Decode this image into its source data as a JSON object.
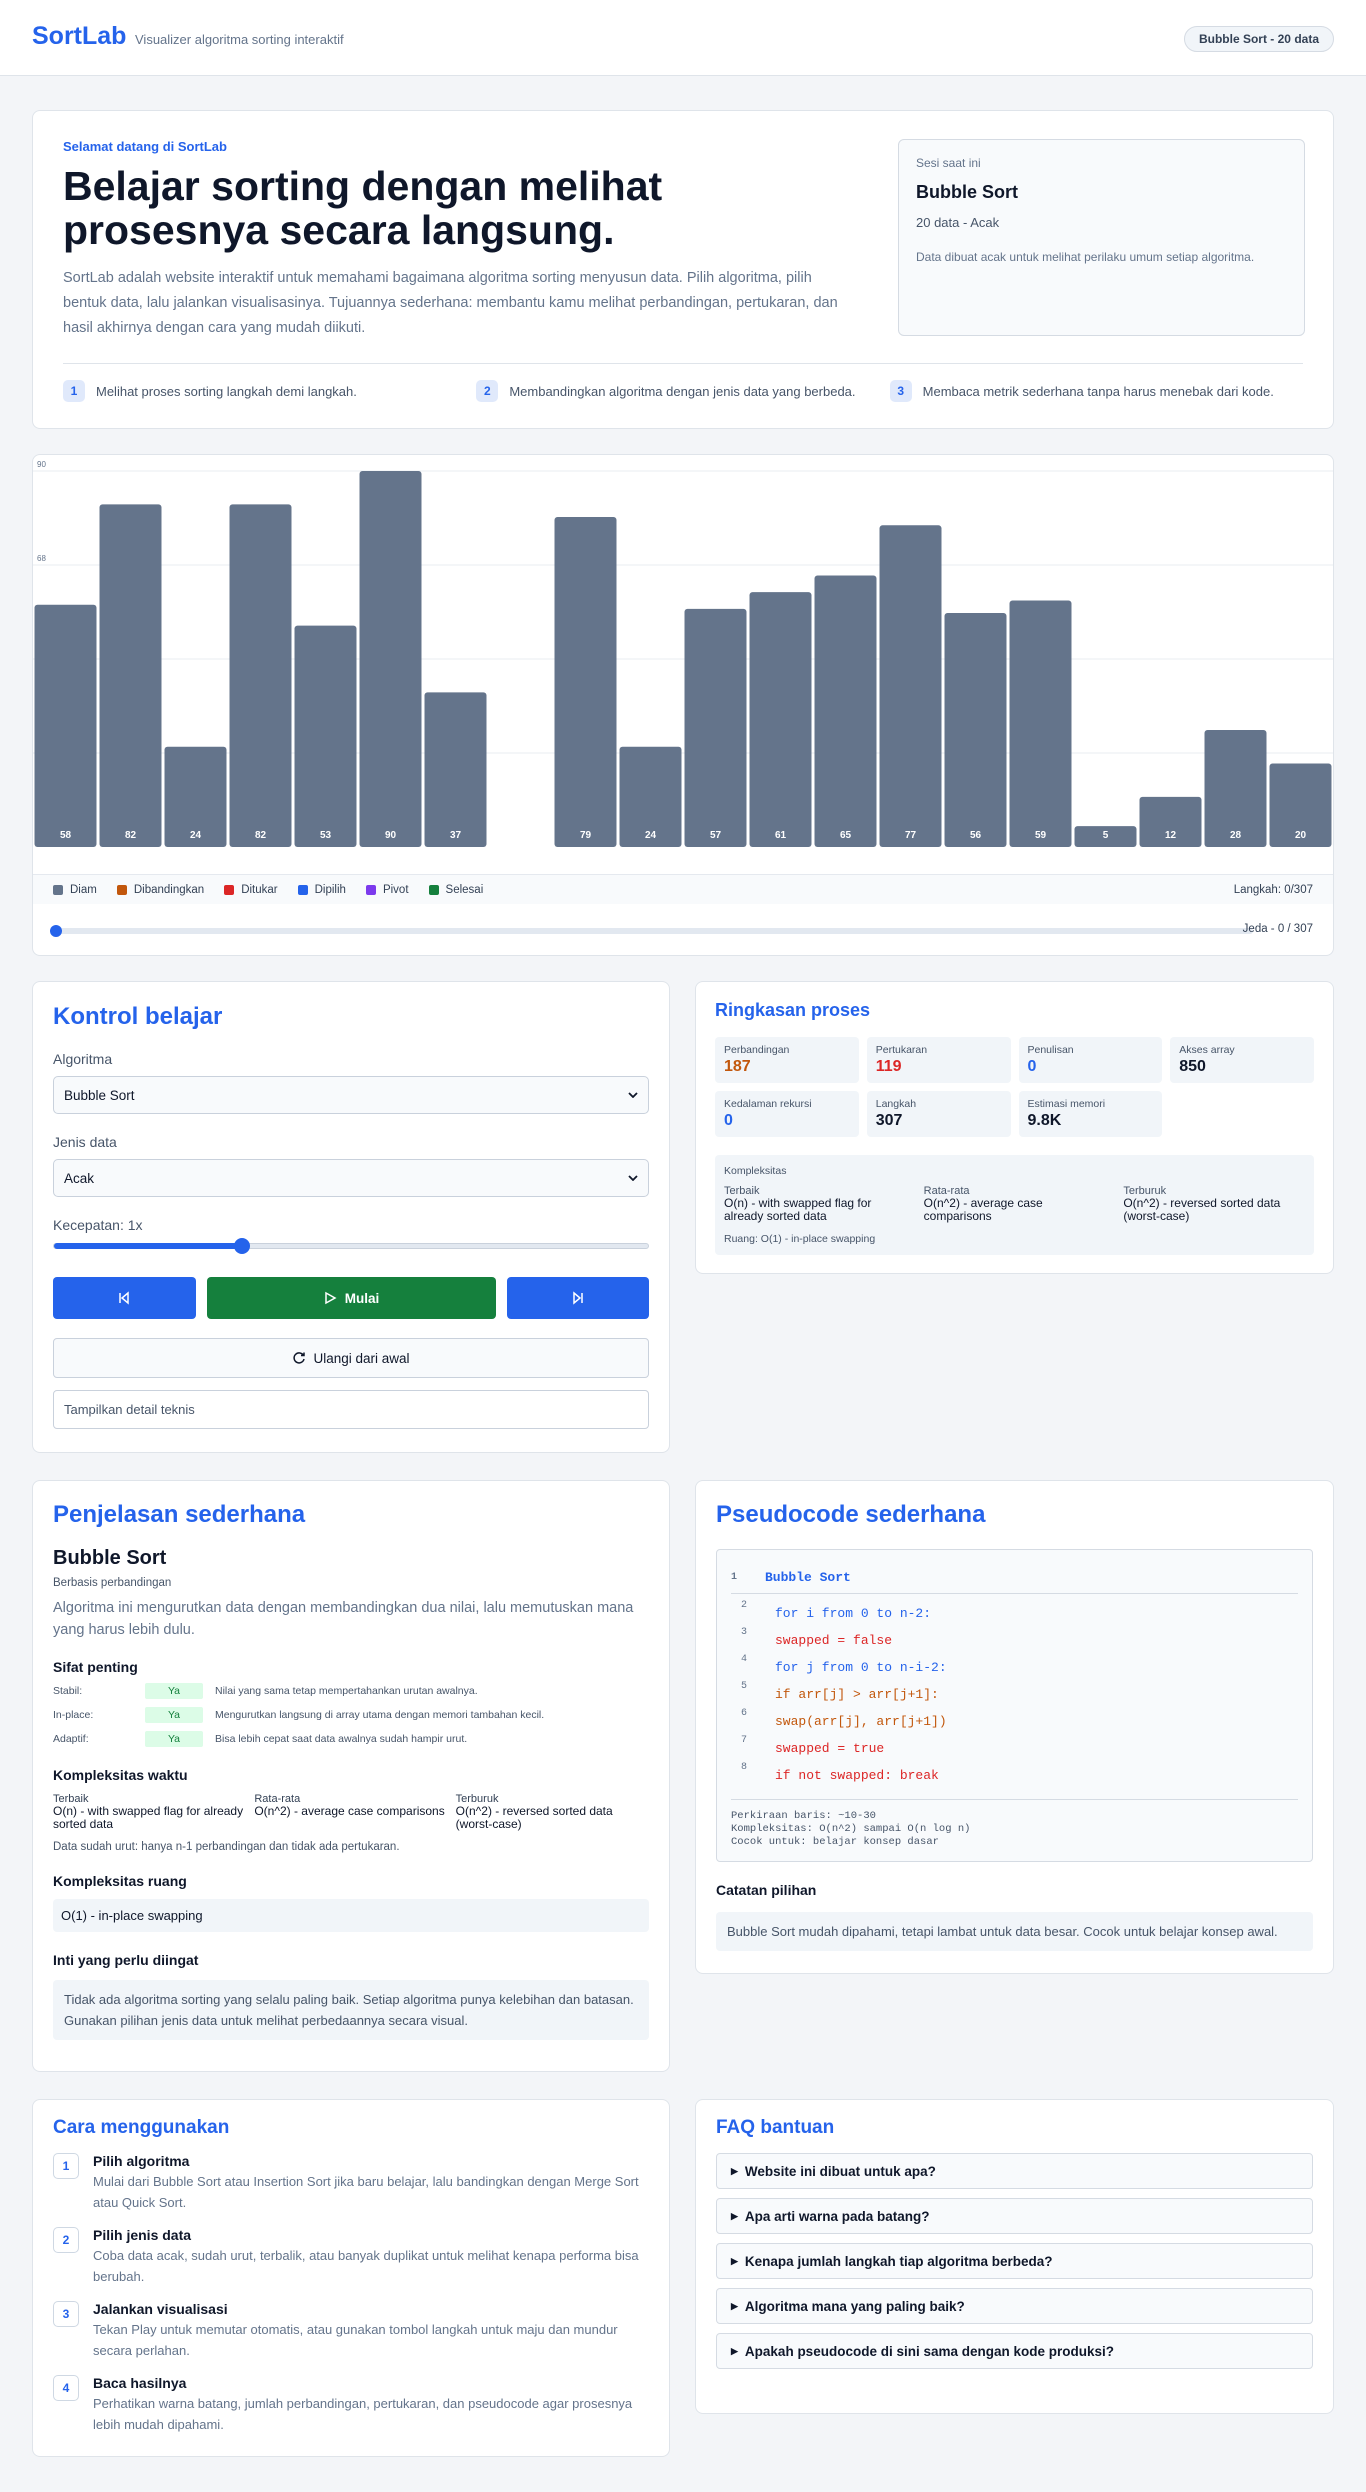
{
  "header": {
    "logo": "SortLab",
    "tagline": "Visualizer algoritma sorting interaktif",
    "badge": "Bubble Sort - 20 data"
  },
  "hero": {
    "eyebrow": "Selamat datang di SortLab",
    "title": "Belajar sorting dengan melihat prosesnya secara langsung.",
    "description": "SortLab adalah website interaktif untuk memahami bagaimana algoritma sorting menyusun data. Pilih algoritma, pilih bentuk data, lalu jalankan visualisasinya. Tujuannya sederhana: membantu kamu melihat perbandingan, pertukaran, dan hasil akhirnya dengan cara yang mudah diikuti.",
    "session": {
      "label": "Sesi saat ini",
      "algorithm": "Bubble Sort",
      "meta": "20 data - Acak",
      "note": "Data dibuat acak untuk melihat perilaku umum setiap algoritma."
    },
    "steps": [
      {
        "number": "1",
        "text": "Melihat proses sorting langkah demi langkah."
      },
      {
        "number": "2",
        "text": "Membandingkan algoritma dengan jenis data yang berbeda."
      },
      {
        "number": "3",
        "text": "Membaca metrik sederhana tanpa harus menebak dari kode."
      }
    ]
  },
  "chart_data": {
    "type": "bar",
    "values": [
      58,
      82,
      24,
      82,
      53,
      90,
      37,
      null,
      79,
      24,
      57,
      61,
      65,
      77,
      56,
      59,
      5,
      12,
      28,
      20
    ],
    "color": "#64748b",
    "ylim": [
      0,
      90
    ],
    "yticks": [
      90,
      {
        "value": 67.5,
        "label": "68"
      },
      {
        "value": 45,
        "label": null
      },
      {
        "value": 22.5,
        "label": null
      }
    ],
    "grid": true
  },
  "legend": {
    "items": [
      {
        "name": "Diam",
        "color": "#64748b"
      },
      {
        "name": "Dibandingkan",
        "color": "#c2570c"
      },
      {
        "name": "Ditukar",
        "color": "#dc2626"
      },
      {
        "name": "Dipilih",
        "color": "#2563eb"
      },
      {
        "name": "Pivot",
        "color": "#7c3aed"
      },
      {
        "name": "Selesai",
        "color": "#15803d"
      }
    ],
    "steps": "Langkah: 0/307",
    "status": "Jeda - 0 / 307"
  },
  "controls": {
    "title": "Kontrol belajar",
    "algorithm_label": "Algoritma",
    "algorithm": "Bubble Sort",
    "data_label": "Jenis data",
    "data": "Acak",
    "speed_label": "Kecepatan: 1x",
    "start": "Mulai",
    "restart": "Ulangi dari awal",
    "details": "Tampilkan detail teknis"
  },
  "summary": {
    "title": "Ringkasan proses",
    "metrics": [
      {
        "label": "Perbandingan",
        "value": 187
      },
      {
        "label": "Pertukaran",
        "value": 119
      },
      {
        "label": "Penulisan",
        "value": 0
      },
      {
        "label": "Akses array",
        "value": 850
      },
      {
        "label": "Kedalaman rekursi",
        "value": 0
      },
      {
        "label": "Langkah",
        "value": 307
      },
      {
        "label": "Estimasi memori",
        "value": "9.8K"
      }
    ],
    "complexity": {
      "title": "Kompleksitas",
      "best_label": "Terbaik",
      "best": "O(n) - with swapped flag for already sorted data",
      "avg_label": "Rata-rata",
      "avg": "O(n^2) - average case comparisons",
      "worst_label": "Terburuk",
      "worst": "O(n^2) - reversed sorted data (worst-case)",
      "space": "Ruang: O(1) - in-place swapping"
    }
  },
  "explanation": {
    "title": "Penjelasan sederhana",
    "algorithm": "Bubble Sort",
    "category": "Berbasis perbandingan",
    "description": "Algoritma ini mengurutkan data dengan membandingkan dua nilai, lalu memutuskan mana yang harus lebih dulu.",
    "properties_title": "Sifat penting",
    "properties": [
      {
        "name": "Stabil:",
        "value": "Ya",
        "text": "Nilai yang sama tetap mempertahankan urutan awalnya."
      },
      {
        "name": "In-place:",
        "value": "Ya",
        "text": "Mengurutkan langsung di array utama dengan memori tambahan kecil."
      },
      {
        "name": "Adaptif:",
        "value": "Ya",
        "text": "Bisa lebih cepat saat data awalnya sudah hampir urut."
      }
    ],
    "time_title": "Kompleksitas waktu",
    "time": {
      "best_label": "Terbaik",
      "best": "O(n) - with swapped flag for already sorted data",
      "avg_label": "Rata-rata",
      "avg": "O(n^2) - average case comparisons",
      "worst_label": "Terburuk",
      "worst": "O(n^2) - reversed sorted data (worst-case)"
    },
    "time_note": "Data sudah urut: hanya n-1 perbandingan dan tidak ada pertukaran.",
    "space_title": "Kompleksitas ruang",
    "space": "O(1) - in-place swapping",
    "key_title": "Inti yang perlu diingat",
    "key": "Tidak ada algoritma sorting yang selalu paling baik. Setiap algoritma punya kelebihan dan batasan. Gunakan pilihan jenis data untuk melihat perbedaannya secara visual."
  },
  "pseudocode": {
    "title": "Pseudocode sederhana",
    "lines": [
      {
        "number": "1",
        "code": "Bubble Sort"
      },
      {
        "number": "2",
        "code": "for i from 0 to n-2:"
      },
      {
        "number": "3",
        "code": "swapped = false"
      },
      {
        "number": "4",
        "code": "for j from 0 to n-i-2:"
      },
      {
        "number": "5",
        "code": "if arr[j] > arr[j+1]:"
      },
      {
        "number": "6",
        "code": "swap(arr[j], arr[j+1])"
      },
      {
        "number": "7",
        "code": "swapped = true"
      },
      {
        "number": "8",
        "code": "if not swapped: break"
      }
    ],
    "footer": [
      "Perkiraan baris: ~10-30",
      "Kompleksitas: O(n^2) sampai O(n log n)",
      "Cocok untuk: belajar konsep dasar"
    ],
    "notes_title": "Catatan pilihan",
    "notes": "Bubble Sort mudah dipahami, tetapi lambat untuk data besar. Cocok untuk belajar konsep awal."
  },
  "howto": {
    "title": "Cara menggunakan",
    "steps": [
      {
        "number": "1",
        "title": "Pilih algoritma",
        "text": "Mulai dari Bubble Sort atau Insertion Sort jika baru belajar, lalu bandingkan dengan Merge Sort atau Quick Sort."
      },
      {
        "number": "2",
        "title": "Pilih jenis data",
        "text": "Coba data acak, sudah urut, terbalik, atau banyak duplikat untuk melihat kenapa performa bisa berubah."
      },
      {
        "number": "3",
        "title": "Jalankan visualisasi",
        "text": "Tekan Play untuk memutar otomatis, atau gunakan tombol langkah untuk maju dan mundur secara perlahan."
      },
      {
        "number": "4",
        "title": "Baca hasilnya",
        "text": "Perhatikan warna batang, jumlah perbandingan, pertukaran, dan pseudocode agar prosesnya lebih mudah dipahami."
      }
    ]
  },
  "faq": {
    "title": "FAQ bantuan",
    "items": [
      "Website ini dibuat untuk apa?",
      "Apa arti warna pada batang?",
      "Kenapa jumlah langkah tiap algoritma berbeda?",
      "Algoritma mana yang paling baik?",
      "Apakah pseudocode di sini sama dengan kode produksi?"
    ]
  }
}
